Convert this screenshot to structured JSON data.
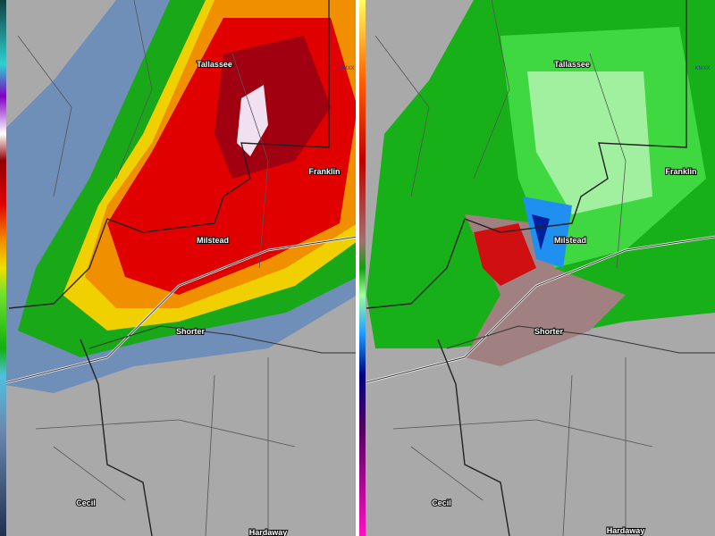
{
  "panels": [
    {
      "labels": {
        "tallassee": "Tallassee",
        "site": "KMXX",
        "franklin": "Franklin",
        "milstead": "Milstead",
        "shorter": "Shorter",
        "cecil": "Cecil",
        "hardaway": "Hardaway"
      }
    },
    {
      "labels": {
        "tallassee": "Tallassee",
        "site": "KMXX",
        "franklin": "Franklin",
        "milstead": "Milstead",
        "shorter": "Shorter",
        "cecil": "Cecil",
        "hardaway": "Hardaway"
      }
    }
  ]
}
